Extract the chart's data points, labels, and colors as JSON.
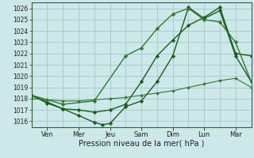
{
  "xlabel": "Pression niveau de la mer( hPa )",
  "background_color": "#cce8e8",
  "grid_color": "#aacccc",
  "line_color_dark": "#1a5c1a",
  "line_color_light": "#336633",
  "xlim": [
    0,
    14
  ],
  "ylim": [
    1015.5,
    1026.5
  ],
  "yticks": [
    1016,
    1017,
    1018,
    1019,
    1020,
    1021,
    1022,
    1023,
    1024,
    1025,
    1026
  ],
  "day_labels": [
    "Ven",
    "Mer",
    "Jeu",
    "Sam",
    "Dim",
    "Lun",
    "Mar"
  ],
  "day_tick_positions": [
    1,
    3,
    5,
    7,
    9,
    11,
    13
  ],
  "series": [
    {
      "x": [
        0,
        1,
        2,
        3,
        4,
        4.5,
        5,
        6,
        7,
        8,
        9,
        10,
        11,
        12,
        13,
        14
      ],
      "y": [
        1018.3,
        1017.7,
        1017.1,
        1016.5,
        1015.9,
        1015.7,
        1015.8,
        1017.3,
        1017.8,
        1019.5,
        1021.8,
        1026.1,
        1025.1,
        1025.8,
        1021.8,
        1019.5
      ],
      "color": "#1a5c1a",
      "lw": 1.0,
      "ms": 2.5
    },
    {
      "x": [
        0,
        1,
        2,
        3,
        4,
        5,
        6,
        7,
        8,
        9,
        10,
        11,
        12,
        13,
        14
      ],
      "y": [
        1018.3,
        1017.6,
        1017.1,
        1017.0,
        1016.8,
        1017.0,
        1017.5,
        1019.5,
        1021.8,
        1023.2,
        1024.5,
        1025.2,
        1026.1,
        1022.0,
        1021.8
      ],
      "color": "#1a5c1a",
      "lw": 1.0,
      "ms": 2.5
    },
    {
      "x": [
        0,
        2,
        4,
        6,
        7,
        8,
        9,
        10,
        11,
        12,
        13,
        14
      ],
      "y": [
        1018.3,
        1017.5,
        1017.8,
        1021.8,
        1022.5,
        1024.2,
        1025.5,
        1026.0,
        1025.0,
        1024.8,
        1023.0,
        1019.5
      ],
      "color": "#2d7a2d",
      "lw": 1.0,
      "ms": 2.5
    },
    {
      "x": [
        0,
        1,
        2,
        3,
        4,
        5,
        6,
        7,
        8,
        9,
        10,
        11,
        12,
        13,
        14
      ],
      "y": [
        1018.0,
        1017.9,
        1017.8,
        1017.8,
        1017.9,
        1018.0,
        1018.1,
        1018.3,
        1018.5,
        1018.7,
        1019.0,
        1019.3,
        1019.6,
        1019.8,
        1019.0
      ],
      "color": "#2d7a2d",
      "lw": 0.8,
      "ms": 2.0
    }
  ]
}
